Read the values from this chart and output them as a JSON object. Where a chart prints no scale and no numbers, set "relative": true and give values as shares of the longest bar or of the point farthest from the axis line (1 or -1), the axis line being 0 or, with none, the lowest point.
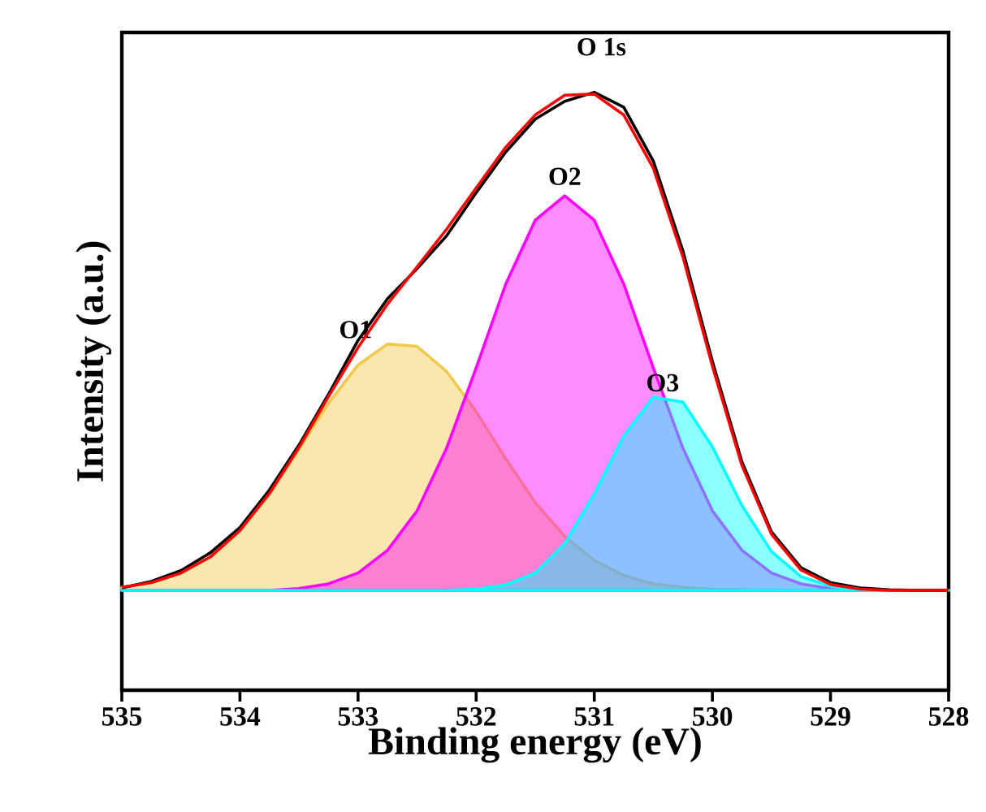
{
  "chart_data": {
    "type": "line",
    "relative": true,
    "xlabel": "Binding energy (eV)",
    "ylabel": "Intensity (a.u.)",
    "xlim": [
      535,
      528
    ],
    "xticks": [
      535,
      534,
      533,
      532,
      531,
      530,
      529,
      528
    ],
    "marker": "none",
    "line_style": "solid",
    "x": [
      535,
      534.75,
      534.5,
      534.25,
      534,
      533.75,
      533.5,
      533.25,
      533,
      532.75,
      532.5,
      532.25,
      532,
      531.75,
      531.5,
      531.25,
      531,
      530.75,
      530.5,
      530.25,
      530,
      529.75,
      529.5,
      529.25,
      529,
      528.75,
      528.5,
      528.25,
      528
    ],
    "series": [
      {
        "type": "area",
        "name": "O1",
        "color": "#f2c94c",
        "values": [
          0.172,
          0.18,
          0.196,
          0.223,
          0.267,
          0.328,
          0.403,
          0.48,
          0.544,
          0.579,
          0.575,
          0.533,
          0.466,
          0.387,
          0.314,
          0.257,
          0.217,
          0.192,
          0.178,
          0.172,
          0.169,
          0.168,
          0.167,
          0.167,
          0.167,
          0.167,
          0.167,
          0.167,
          0.167
        ]
      },
      {
        "type": "area",
        "name": "O2",
        "color": "#ff00ff",
        "values": [
          0.167,
          0.167,
          0.167,
          0.167,
          0.167,
          0.167,
          0.17,
          0.178,
          0.196,
          0.234,
          0.3,
          0.405,
          0.539,
          0.679,
          0.786,
          0.827,
          0.786,
          0.679,
          0.539,
          0.405,
          0.3,
          0.234,
          0.196,
          0.178,
          0.17,
          0.168,
          0.167,
          0.167,
          0.167
        ]
      },
      {
        "type": "area",
        "name": "O3",
        "color": "#00ffff",
        "values": [
          0.167,
          0.167,
          0.167,
          0.167,
          0.167,
          0.167,
          0.167,
          0.167,
          0.167,
          0.167,
          0.167,
          0.167,
          0.169,
          0.176,
          0.196,
          0.245,
          0.328,
          0.425,
          0.49,
          0.482,
          0.407,
          0.309,
          0.232,
          0.19,
          0.174,
          0.168,
          0.167,
          0.167,
          0.167
        ]
      },
      {
        "color": "#000000",
        "values": [
          0.171,
          0.182,
          0.2,
          0.23,
          0.272,
          0.335,
          0.41,
          0.495,
          0.585,
          0.655,
          0.705,
          0.76,
          0.832,
          0.9,
          0.955,
          0.985,
          1.0,
          0.975,
          0.885,
          0.735,
          0.55,
          0.382,
          0.265,
          0.205,
          0.18,
          0.171,
          0.168,
          0.167,
          0.167
        ]
      },
      {
        "color": "#ff0000",
        "values": [
          0.172,
          0.18,
          0.196,
          0.223,
          0.267,
          0.329,
          0.406,
          0.491,
          0.573,
          0.646,
          0.708,
          0.771,
          0.84,
          0.908,
          0.962,
          0.995,
          0.997,
          0.962,
          0.873,
          0.725,
          0.542,
          0.376,
          0.261,
          0.201,
          0.177,
          0.169,
          0.167,
          0.167,
          0.167
        ]
      }
    ],
    "annotations": [
      "O 1s"
    ]
  }
}
